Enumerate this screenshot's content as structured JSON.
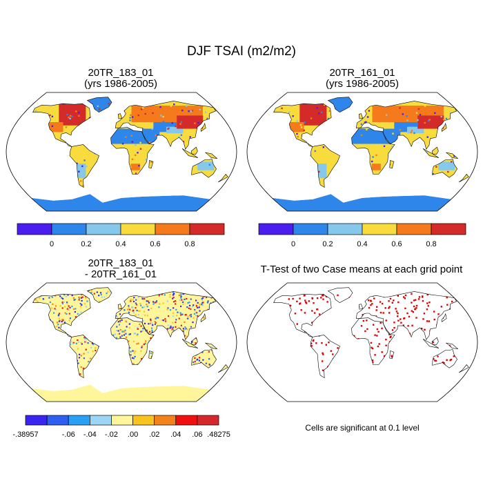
{
  "figure": {
    "title": "DJF TSAI (m2/m2)"
  },
  "panels": [
    {
      "id": "case1",
      "title_line1": "20TR_183_01",
      "title_line2": "(yrs 1986-2005)",
      "kind": "field"
    },
    {
      "id": "case2",
      "title_line1": "20TR_161_01",
      "title_line2": "(yrs 1986-2005)",
      "kind": "field"
    },
    {
      "id": "difference",
      "title_line1": "20TR_183_01",
      "title_line2": "- 20TR_161_01",
      "kind": "difference"
    },
    {
      "id": "ttest",
      "title_line1": "T-Test of two Case means at each grid point",
      "title_line2": "",
      "kind": "ttest"
    }
  ],
  "colorbar_main": {
    "colors": [
      "#4b1ef0",
      "#2f86ea",
      "#86c8ec",
      "#f8dc3e",
      "#f47a1c",
      "#d42a2a"
    ],
    "labels": [
      "0",
      "0.2",
      "0.4",
      "0.6",
      "0.8"
    ]
  },
  "colorbar_diff": {
    "colors": [
      "#3a24f0",
      "#2e5ff0",
      "#2aa0f4",
      "#9dd6f4",
      "#fff59a",
      "#f9c31e",
      "#f4821c",
      "#f01010",
      "#d4282e"
    ],
    "labels": [
      ".00",
      ".02",
      ".04",
      ".06"
    ],
    "neg_labels": [
      "-.06",
      "-.04",
      "-.02"
    ],
    "min_label": "-.38957",
    "max_label": ".48275"
  },
  "ttest_note": "Cells are significant at 0.1 level",
  "map_colors": {
    "ocean": "#ffffff",
    "outline": "#000000",
    "significant": "#e00000"
  }
}
